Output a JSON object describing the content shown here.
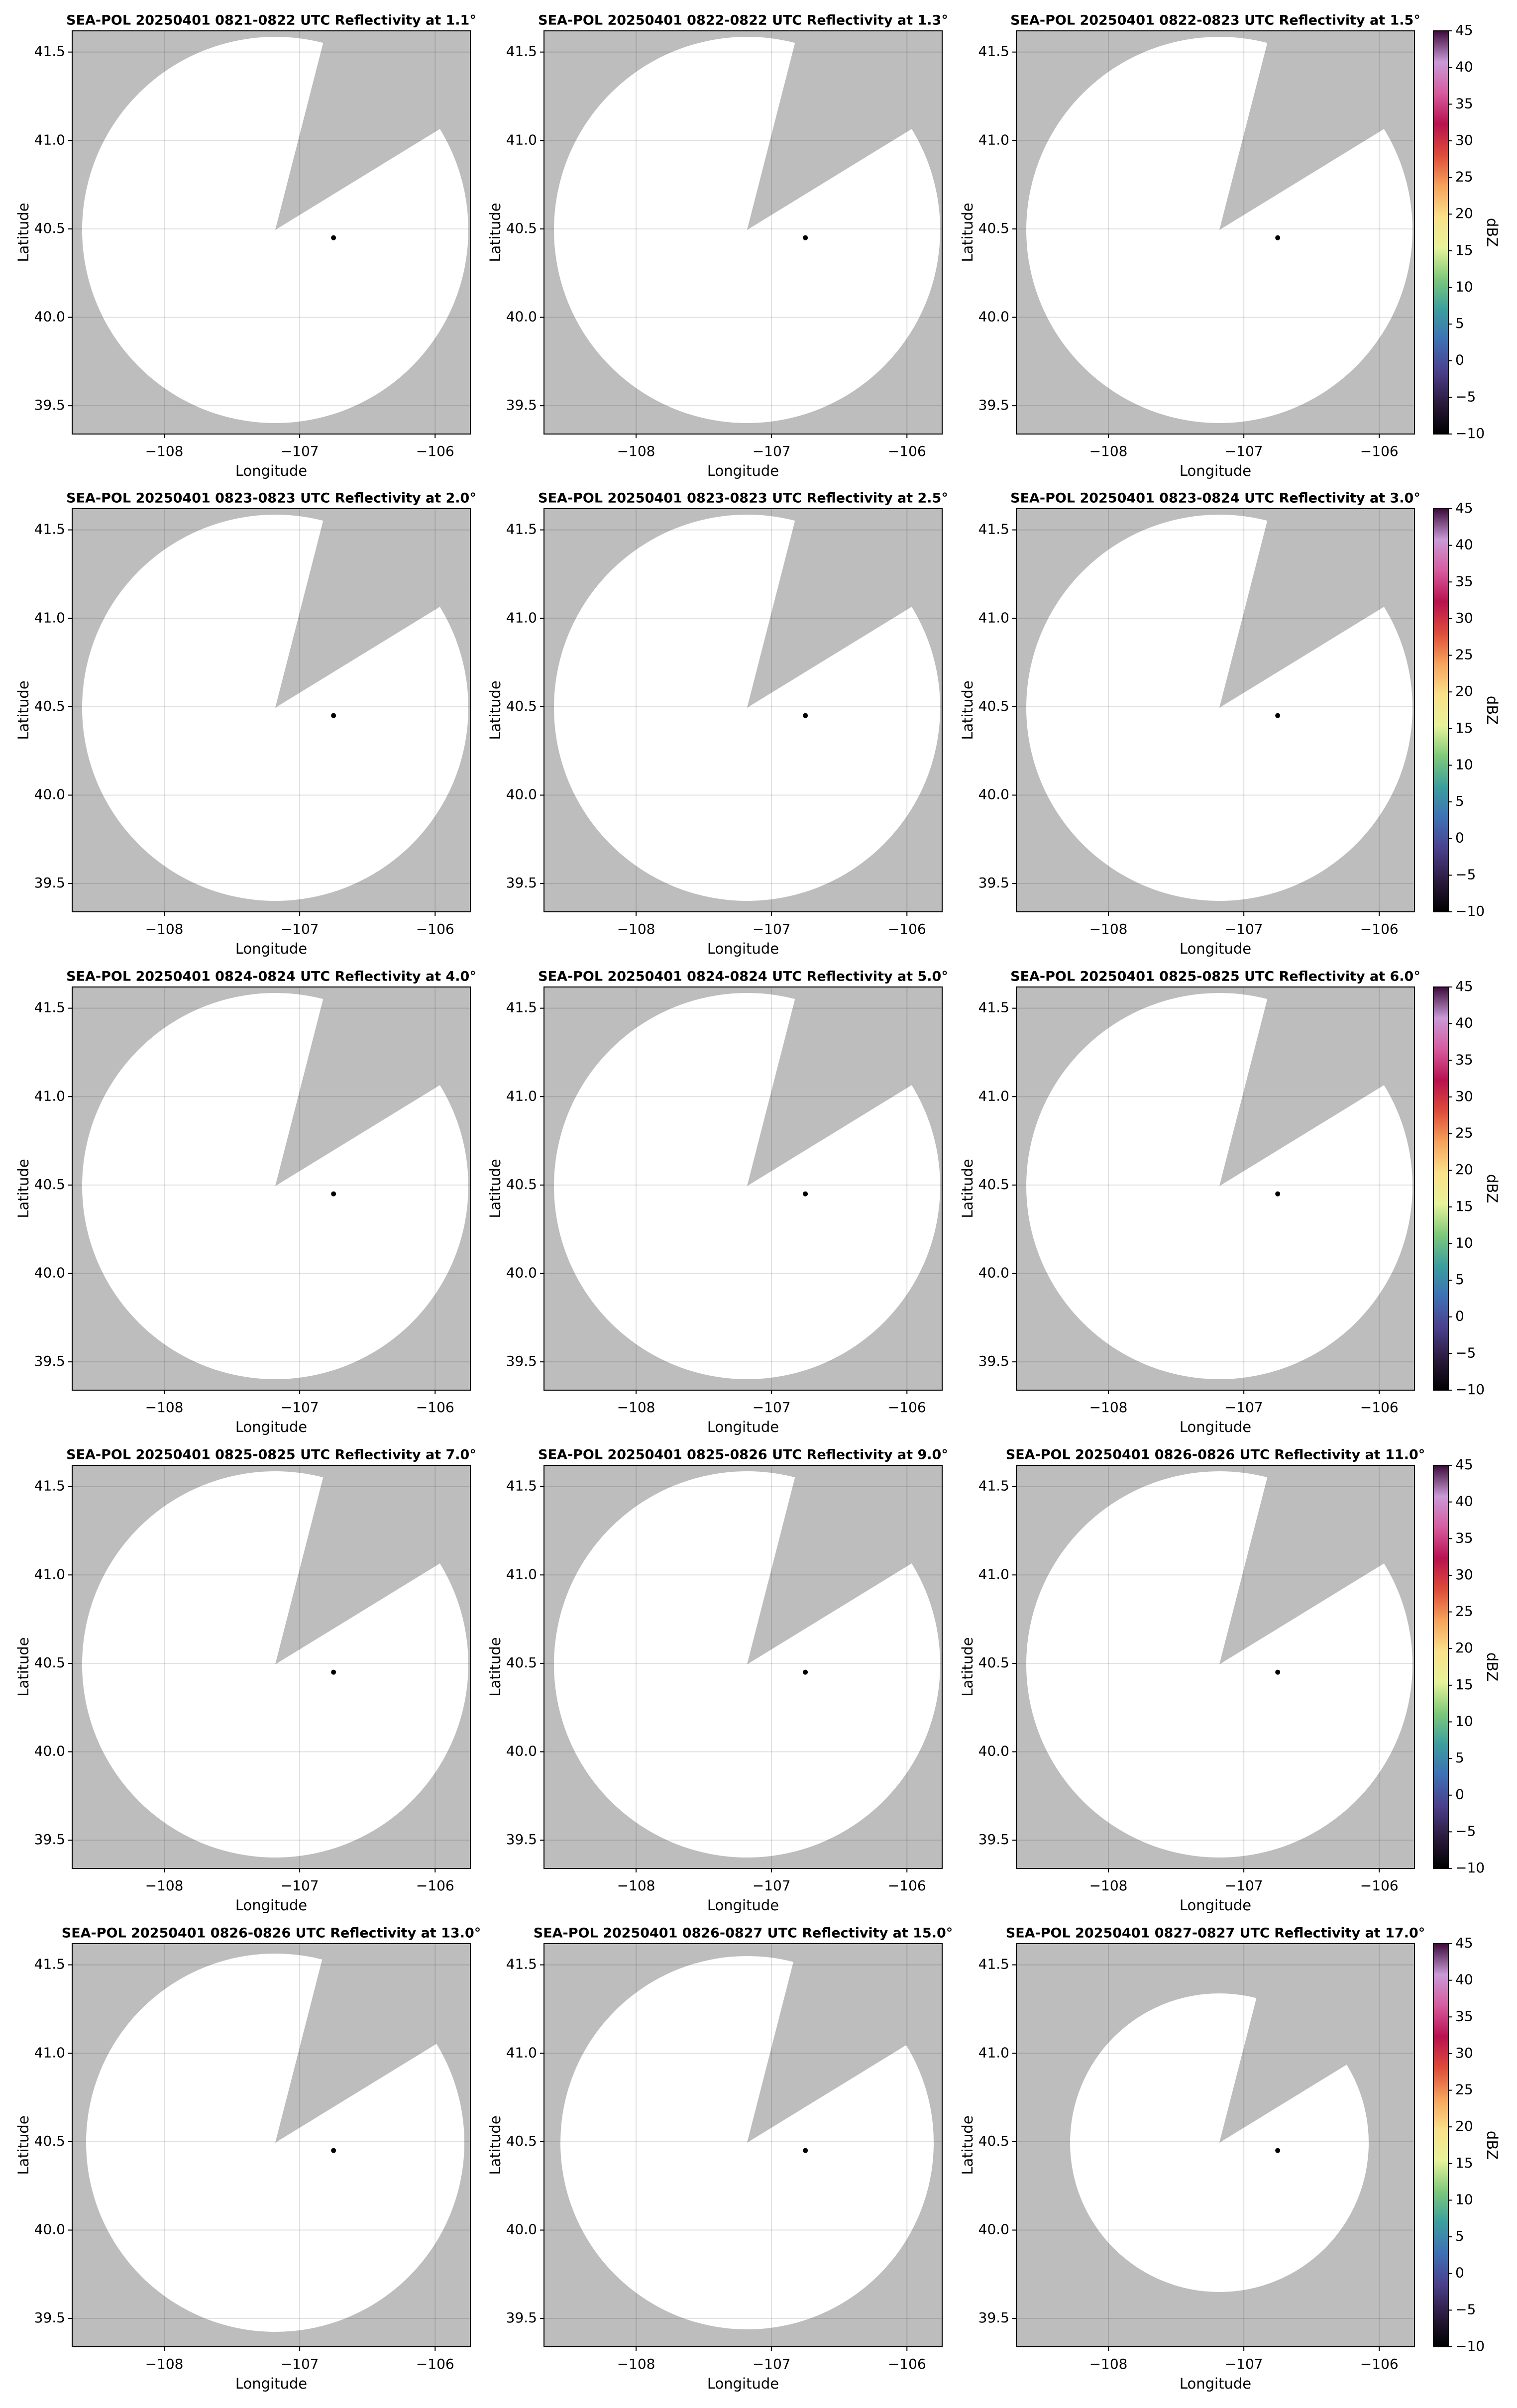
{
  "chart_data": [
    {
      "type": "scatter",
      "title": "SEA-POL 20250401 0821-0822 UTC Reflectivity at 1.1°",
      "xlabel": "Longitude",
      "ylabel": "Latitude",
      "xlim": [
        -108.68,
        -105.74
      ],
      "ylim": [
        39.34,
        41.62
      ],
      "xticks": [
        {
          "value": -108,
          "label": "−108"
        },
        {
          "value": -107,
          "label": "−107"
        },
        {
          "value": -106,
          "label": "−106"
        }
      ],
      "yticks": [
        39.5,
        {
          "value": 40,
          "label": "40.0"
        },
        40.5,
        {
          "value": 41,
          "label": "41.0"
        },
        41.5
      ],
      "grid": true,
      "series": [
        {
          "x": [
            -106.75
          ],
          "values": [
            40.45
          ],
          "color": "#000000"
        }
      ]
    },
    {
      "type": "scatter",
      "title": "SEA-POL 20250401 0822-0822 UTC Reflectivity at 1.3°",
      "xlabel": "Longitude",
      "ylabel": "Latitude",
      "xlim": [
        -108.68,
        -105.74
      ],
      "ylim": [
        39.34,
        41.62
      ],
      "xticks": [
        {
          "value": -108,
          "label": "−108"
        },
        {
          "value": -107,
          "label": "−107"
        },
        {
          "value": -106,
          "label": "−106"
        }
      ],
      "yticks": [
        39.5,
        {
          "value": 40,
          "label": "40.0"
        },
        40.5,
        {
          "value": 41,
          "label": "41.0"
        },
        41.5
      ],
      "grid": true,
      "series": [
        {
          "x": [
            -106.75
          ],
          "values": [
            40.45
          ],
          "color": "#000000"
        }
      ]
    },
    {
      "type": "scatter",
      "title": "SEA-POL 20250401 0822-0823 UTC Reflectivity at 1.5°",
      "xlabel": "Longitude",
      "ylabel": "Latitude",
      "xlim": [
        -108.68,
        -105.74
      ],
      "ylim": [
        39.34,
        41.62
      ],
      "xticks": [
        {
          "value": -108,
          "label": "−108"
        },
        {
          "value": -107,
          "label": "−107"
        },
        {
          "value": -106,
          "label": "−106"
        }
      ],
      "yticks": [
        39.5,
        {
          "value": 40,
          "label": "40.0"
        },
        40.5,
        {
          "value": 41,
          "label": "41.0"
        },
        41.5
      ],
      "grid": true,
      "series": [
        {
          "x": [
            -106.75
          ],
          "values": [
            40.45
          ],
          "color": "#000000"
        }
      ],
      "colorbar": {
        "label": "dBZ",
        "lim": [
          -10,
          45
        ],
        "ticks": [
          {
            "value": -10,
            "label": "−10"
          },
          {
            "value": -5,
            "label": "−5"
          },
          0,
          5,
          10,
          15,
          20,
          25,
          30,
          35,
          40,
          45
        ],
        "colors": [
          "#000000",
          "#2b1a3d",
          "#4a3f8c",
          "#3f6fb5",
          "#3b9e9e",
          "#7ec87a",
          "#e6f39a",
          "#fbe08a",
          "#f6a35c",
          "#dd4b3a",
          "#b8124f",
          "#d65ca0",
          "#c99ad6",
          "#3d0a3a"
        ]
      }
    },
    {
      "type": "scatter",
      "title": "SEA-POL 20250401 0823-0823 UTC Reflectivity at 2.0°",
      "xlabel": "Longitude",
      "ylabel": "Latitude",
      "xlim": [
        -108.68,
        -105.74
      ],
      "ylim": [
        39.34,
        41.62
      ],
      "xticks": [
        {
          "value": -108,
          "label": "−108"
        },
        {
          "value": -107,
          "label": "−107"
        },
        {
          "value": -106,
          "label": "−106"
        }
      ],
      "yticks": [
        39.5,
        {
          "value": 40,
          "label": "40.0"
        },
        40.5,
        {
          "value": 41,
          "label": "41.0"
        },
        41.5
      ],
      "grid": true,
      "series": [
        {
          "x": [
            -106.75
          ],
          "values": [
            40.45
          ],
          "color": "#000000"
        }
      ]
    },
    {
      "type": "scatter",
      "title": "SEA-POL 20250401 0823-0823 UTC Reflectivity at 2.5°",
      "xlabel": "Longitude",
      "ylabel": "Latitude",
      "xlim": [
        -108.68,
        -105.74
      ],
      "ylim": [
        39.34,
        41.62
      ],
      "xticks": [
        {
          "value": -108,
          "label": "−108"
        },
        {
          "value": -107,
          "label": "−107"
        },
        {
          "value": -106,
          "label": "−106"
        }
      ],
      "yticks": [
        39.5,
        {
          "value": 40,
          "label": "40.0"
        },
        40.5,
        {
          "value": 41,
          "label": "41.0"
        },
        41.5
      ],
      "grid": true,
      "series": [
        {
          "x": [
            -106.75
          ],
          "values": [
            40.45
          ],
          "color": "#000000"
        }
      ]
    },
    {
      "type": "scatter",
      "title": "SEA-POL 20250401 0823-0824 UTC Reflectivity at 3.0°",
      "xlabel": "Longitude",
      "ylabel": "Latitude",
      "xlim": [
        -108.68,
        -105.74
      ],
      "ylim": [
        39.34,
        41.62
      ],
      "xticks": [
        {
          "value": -108,
          "label": "−108"
        },
        {
          "value": -107,
          "label": "−107"
        },
        {
          "value": -106,
          "label": "−106"
        }
      ],
      "yticks": [
        39.5,
        {
          "value": 40,
          "label": "40.0"
        },
        40.5,
        {
          "value": 41,
          "label": "41.0"
        },
        41.5
      ],
      "grid": true,
      "series": [
        {
          "x": [
            -106.75
          ],
          "values": [
            40.45
          ],
          "color": "#000000"
        }
      ],
      "colorbar": {
        "label": "dBZ",
        "lim": [
          -10,
          45
        ],
        "ticks": [
          {
            "value": -10,
            "label": "−10"
          },
          {
            "value": -5,
            "label": "−5"
          },
          0,
          5,
          10,
          15,
          20,
          25,
          30,
          35,
          40,
          45
        ],
        "colors": [
          "#000000",
          "#2b1a3d",
          "#4a3f8c",
          "#3f6fb5",
          "#3b9e9e",
          "#7ec87a",
          "#e6f39a",
          "#fbe08a",
          "#f6a35c",
          "#dd4b3a",
          "#b8124f",
          "#d65ca0",
          "#c99ad6",
          "#3d0a3a"
        ]
      }
    },
    {
      "type": "scatter",
      "title": "SEA-POL 20250401 0824-0824 UTC Reflectivity at 4.0°",
      "xlabel": "Longitude",
      "ylabel": "Latitude",
      "xlim": [
        -108.68,
        -105.74
      ],
      "ylim": [
        39.34,
        41.62
      ],
      "xticks": [
        {
          "value": -108,
          "label": "−108"
        },
        {
          "value": -107,
          "label": "−107"
        },
        {
          "value": -106,
          "label": "−106"
        }
      ],
      "yticks": [
        39.5,
        {
          "value": 40,
          "label": "40.0"
        },
        40.5,
        {
          "value": 41,
          "label": "41.0"
        },
        41.5
      ],
      "grid": true,
      "series": [
        {
          "x": [
            -106.75
          ],
          "values": [
            40.45
          ],
          "color": "#000000"
        }
      ]
    },
    {
      "type": "scatter",
      "title": "SEA-POL 20250401 0824-0824 UTC Reflectivity at 5.0°",
      "xlabel": "Longitude",
      "ylabel": "Latitude",
      "xlim": [
        -108.68,
        -105.74
      ],
      "ylim": [
        39.34,
        41.62
      ],
      "xticks": [
        {
          "value": -108,
          "label": "−108"
        },
        {
          "value": -107,
          "label": "−107"
        },
        {
          "value": -106,
          "label": "−106"
        }
      ],
      "yticks": [
        39.5,
        {
          "value": 40,
          "label": "40.0"
        },
        40.5,
        {
          "value": 41,
          "label": "41.0"
        },
        41.5
      ],
      "grid": true,
      "series": [
        {
          "x": [
            -106.75
          ],
          "values": [
            40.45
          ],
          "color": "#000000"
        }
      ]
    },
    {
      "type": "scatter",
      "title": "SEA-POL 20250401 0825-0825 UTC Reflectivity at 6.0°",
      "xlabel": "Longitude",
      "ylabel": "Latitude",
      "xlim": [
        -108.68,
        -105.74
      ],
      "ylim": [
        39.34,
        41.62
      ],
      "xticks": [
        {
          "value": -108,
          "label": "−108"
        },
        {
          "value": -107,
          "label": "−107"
        },
        {
          "value": -106,
          "label": "−106"
        }
      ],
      "yticks": [
        39.5,
        {
          "value": 40,
          "label": "40.0"
        },
        40.5,
        {
          "value": 41,
          "label": "41.0"
        },
        41.5
      ],
      "grid": true,
      "series": [
        {
          "x": [
            -106.75
          ],
          "values": [
            40.45
          ],
          "color": "#000000"
        }
      ],
      "colorbar": {
        "label": "dBZ",
        "lim": [
          -10,
          45
        ],
        "ticks": [
          {
            "value": -10,
            "label": "−10"
          },
          {
            "value": -5,
            "label": "−5"
          },
          0,
          5,
          10,
          15,
          20,
          25,
          30,
          35,
          40,
          45
        ],
        "colors": [
          "#000000",
          "#2b1a3d",
          "#4a3f8c",
          "#3f6fb5",
          "#3b9e9e",
          "#7ec87a",
          "#e6f39a",
          "#fbe08a",
          "#f6a35c",
          "#dd4b3a",
          "#b8124f",
          "#d65ca0",
          "#c99ad6",
          "#3d0a3a"
        ]
      }
    },
    {
      "type": "scatter",
      "title": "SEA-POL 20250401 0825-0825 UTC Reflectivity at 7.0°",
      "xlabel": "Longitude",
      "ylabel": "Latitude",
      "xlim": [
        -108.68,
        -105.74
      ],
      "ylim": [
        39.34,
        41.62
      ],
      "xticks": [
        {
          "value": -108,
          "label": "−108"
        },
        {
          "value": -107,
          "label": "−107"
        },
        {
          "value": -106,
          "label": "−106"
        }
      ],
      "yticks": [
        39.5,
        {
          "value": 40,
          "label": "40.0"
        },
        40.5,
        {
          "value": 41,
          "label": "41.0"
        },
        41.5
      ],
      "grid": true,
      "series": [
        {
          "x": [
            -106.75
          ],
          "values": [
            40.45
          ],
          "color": "#000000"
        }
      ]
    },
    {
      "type": "scatter",
      "title": "SEA-POL 20250401 0825-0826 UTC Reflectivity at 9.0°",
      "xlabel": "Longitude",
      "ylabel": "Latitude",
      "xlim": [
        -108.68,
        -105.74
      ],
      "ylim": [
        39.34,
        41.62
      ],
      "xticks": [
        {
          "value": -108,
          "label": "−108"
        },
        {
          "value": -107,
          "label": "−107"
        },
        {
          "value": -106,
          "label": "−106"
        }
      ],
      "yticks": [
        39.5,
        {
          "value": 40,
          "label": "40.0"
        },
        40.5,
        {
          "value": 41,
          "label": "41.0"
        },
        41.5
      ],
      "grid": true,
      "series": [
        {
          "x": [
            -106.75
          ],
          "values": [
            40.45
          ],
          "color": "#000000"
        }
      ]
    },
    {
      "type": "scatter",
      "title": "SEA-POL 20250401 0826-0826 UTC Reflectivity at 11.0°",
      "xlabel": "Longitude",
      "ylabel": "Latitude",
      "xlim": [
        -108.68,
        -105.74
      ],
      "ylim": [
        39.34,
        41.62
      ],
      "xticks": [
        {
          "value": -108,
          "label": "−108"
        },
        {
          "value": -107,
          "label": "−107"
        },
        {
          "value": -106,
          "label": "−106"
        }
      ],
      "yticks": [
        39.5,
        {
          "value": 40,
          "label": "40.0"
        },
        40.5,
        {
          "value": 41,
          "label": "41.0"
        },
        41.5
      ],
      "grid": true,
      "series": [
        {
          "x": [
            -106.75
          ],
          "values": [
            40.45
          ],
          "color": "#000000"
        }
      ],
      "colorbar": {
        "label": "dBZ",
        "lim": [
          -10,
          45
        ],
        "ticks": [
          {
            "value": -10,
            "label": "−10"
          },
          {
            "value": -5,
            "label": "−5"
          },
          0,
          5,
          10,
          15,
          20,
          25,
          30,
          35,
          40,
          45
        ],
        "colors": [
          "#000000",
          "#2b1a3d",
          "#4a3f8c",
          "#3f6fb5",
          "#3b9e9e",
          "#7ec87a",
          "#e6f39a",
          "#fbe08a",
          "#f6a35c",
          "#dd4b3a",
          "#b8124f",
          "#d65ca0",
          "#c99ad6",
          "#3d0a3a"
        ]
      }
    },
    {
      "type": "scatter",
      "title": "SEA-POL 20250401 0826-0826 UTC Reflectivity at 13.0°",
      "xlabel": "Longitude",
      "ylabel": "Latitude",
      "xlim": [
        -108.68,
        -105.74
      ],
      "ylim": [
        39.34,
        41.62
      ],
      "xticks": [
        {
          "value": -108,
          "label": "−108"
        },
        {
          "value": -107,
          "label": "−107"
        },
        {
          "value": -106,
          "label": "−106"
        }
      ],
      "yticks": [
        39.5,
        {
          "value": 40,
          "label": "40.0"
        },
        40.5,
        {
          "value": 41,
          "label": "41.0"
        },
        41.5
      ],
      "grid": true,
      "series": [
        {
          "x": [
            -106.75
          ],
          "values": [
            40.45
          ],
          "color": "#000000"
        }
      ]
    },
    {
      "type": "scatter",
      "title": "SEA-POL 20250401 0826-0827 UTC Reflectivity at 15.0°",
      "xlabel": "Longitude",
      "ylabel": "Latitude",
      "xlim": [
        -108.68,
        -105.74
      ],
      "ylim": [
        39.34,
        41.62
      ],
      "xticks": [
        {
          "value": -108,
          "label": "−108"
        },
        {
          "value": -107,
          "label": "−107"
        },
        {
          "value": -106,
          "label": "−106"
        }
      ],
      "yticks": [
        39.5,
        {
          "value": 40,
          "label": "40.0"
        },
        40.5,
        {
          "value": 41,
          "label": "41.0"
        },
        41.5
      ],
      "grid": true,
      "series": [
        {
          "x": [
            -106.75
          ],
          "values": [
            40.45
          ],
          "color": "#000000"
        }
      ]
    },
    {
      "type": "scatter",
      "title": "SEA-POL 20250401 0827-0827 UTC Reflectivity at 17.0°",
      "xlabel": "Longitude",
      "ylabel": "Latitude",
      "xlim": [
        -108.68,
        -105.74
      ],
      "ylim": [
        39.34,
        41.62
      ],
      "xticks": [
        {
          "value": -108,
          "label": "−108"
        },
        {
          "value": -107,
          "label": "−107"
        },
        {
          "value": -106,
          "label": "−106"
        }
      ],
      "yticks": [
        39.5,
        {
          "value": 40,
          "label": "40.0"
        },
        40.5,
        {
          "value": 41,
          "label": "41.0"
        },
        41.5
      ],
      "grid": true,
      "series": [
        {
          "x": [
            -106.75
          ],
          "values": [
            40.45
          ],
          "color": "#000000"
        }
      ],
      "colorbar": {
        "label": "dBZ",
        "lim": [
          -10,
          45
        ],
        "ticks": [
          {
            "value": -10,
            "label": "−10"
          },
          {
            "value": -5,
            "label": "−5"
          },
          0,
          5,
          10,
          15,
          20,
          25,
          30,
          35,
          40,
          45
        ],
        "colors": [
          "#000000",
          "#2b1a3d",
          "#4a3f8c",
          "#3f6fb5",
          "#3b9e9e",
          "#7ec87a",
          "#e6f39a",
          "#fbe08a",
          "#f6a35c",
          "#dd4b3a",
          "#b8124f",
          "#d65ca0",
          "#c99ad6",
          "#3d0a3a"
        ]
      }
    }
  ]
}
